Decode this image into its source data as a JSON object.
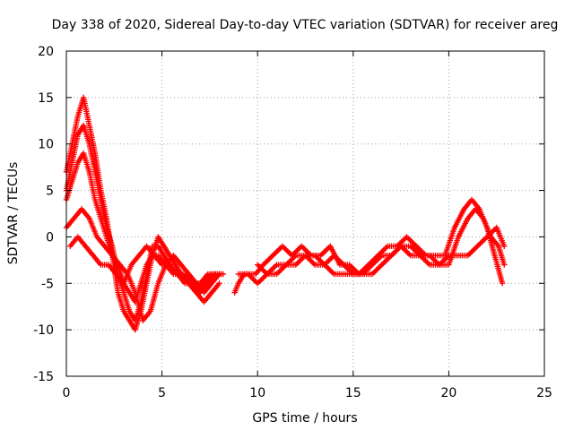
{
  "chart_data": {
    "type": "scatter",
    "title": "Day 338 of 2020, Sidereal Day-to-day VTEC variation (SDTVAR) for receiver areg",
    "xlabel": "GPS time / hours",
    "ylabel": "SDTVAR / TECUs",
    "xlim": [
      0,
      25
    ],
    "ylim": [
      -15,
      20
    ],
    "xticks": [
      0,
      5,
      10,
      15,
      20,
      25
    ],
    "yticks": [
      -15,
      -10,
      -5,
      0,
      5,
      10,
      15,
      20
    ],
    "grid": true,
    "marker": "plus",
    "color": "#ff0000",
    "series": [
      {
        "name": "trace-1",
        "x": [
          0.0,
          0.3,
          0.6,
          0.9,
          1.2,
          1.5,
          1.8,
          2.1,
          2.4,
          2.7,
          3.0,
          3.3,
          3.6,
          3.9,
          4.2,
          4.5,
          4.8,
          5.1,
          5.4,
          5.7,
          6.0,
          6.4,
          6.8,
          7.2,
          7.6,
          8.0
        ],
        "y": [
          7,
          10,
          13,
          15,
          12,
          9,
          5,
          2,
          -2,
          -6,
          -8,
          -9,
          -10,
          -8,
          -5,
          -2,
          0,
          -1,
          -2,
          -3,
          -4,
          -5,
          -6,
          -7,
          -6,
          -5
        ]
      },
      {
        "name": "trace-2",
        "x": [
          0.0,
          0.3,
          0.6,
          0.9,
          1.2,
          1.5,
          1.8,
          2.1,
          2.4,
          2.7,
          3.0,
          3.3,
          3.6,
          3.9,
          4.2,
          4.5,
          4.8,
          5.1,
          5.4,
          5.8,
          6.2,
          6.6,
          7.0,
          7.4,
          7.8,
          8.2
        ],
        "y": [
          5,
          8,
          11,
          12,
          10,
          7,
          4,
          1,
          -1,
          -4,
          -6,
          -8,
          -9,
          -7,
          -4,
          -1,
          -1,
          -2,
          -3,
          -4,
          -5,
          -5,
          -6,
          -5,
          -4,
          -4
        ]
      },
      {
        "name": "trace-3",
        "x": [
          0.0,
          0.3,
          0.6,
          0.9,
          1.2,
          1.5,
          1.8,
          2.1,
          2.4,
          2.7,
          3.0,
          3.3,
          3.6,
          3.9,
          4.2,
          4.5,
          4.8,
          5.2,
          5.6,
          6.0,
          6.4,
          6.8,
          7.2,
          7.6,
          8.0
        ],
        "y": [
          4,
          6,
          8,
          9,
          7,
          4,
          2,
          0,
          -2,
          -3,
          -5,
          -6,
          -7,
          -5,
          -3,
          -2,
          -2,
          -3,
          -4,
          -4,
          -5,
          -6,
          -5,
          -4,
          -4
        ]
      },
      {
        "name": "trace-4",
        "x": [
          0.0,
          0.4,
          0.8,
          1.2,
          1.6,
          2.0,
          2.4,
          2.8,
          3.2,
          3.6,
          4.0,
          4.4,
          4.8,
          5.2,
          5.6,
          6.0,
          6.4,
          6.8,
          7.2,
          7.6,
          8.0
        ],
        "y": [
          1,
          2,
          3,
          2,
          0,
          -1,
          -2,
          -3,
          -4,
          -6,
          -9,
          -8,
          -5,
          -3,
          -2,
          -3,
          -4,
          -5,
          -6,
          -5,
          -4
        ]
      },
      {
        "name": "trace-5",
        "x": [
          0.2,
          0.6,
          1.0,
          1.4,
          1.8,
          2.2,
          2.6,
          3.0,
          3.4,
          3.8,
          4.2,
          4.6,
          5.0,
          5.4,
          5.8,
          6.2,
          6.6,
          7.0,
          7.4,
          7.8
        ],
        "y": [
          -1,
          0,
          -1,
          -2,
          -3,
          -3,
          -4,
          -5,
          -3,
          -2,
          -1,
          -2,
          -3,
          -3,
          -4,
          -4,
          -5,
          -5,
          -4,
          -4
        ]
      },
      {
        "name": "trace-6",
        "x": [
          8.8,
          9.0,
          9.3,
          9.6,
          9.9,
          10.3,
          10.8,
          11.3,
          11.8,
          12.3,
          12.8,
          13.3,
          13.8,
          14.3,
          14.8,
          15.3,
          15.8,
          16.3,
          16.8,
          17.3,
          17.8,
          18.3,
          18.8,
          19.3,
          19.8,
          20.3,
          20.8,
          21.2,
          21.6,
          22.0,
          22.4,
          22.8
        ],
        "y": [
          -6,
          -5,
          -4,
          -4,
          -4,
          -3,
          -2,
          -1,
          -2,
          -1,
          -2,
          -2,
          -1,
          -3,
          -3,
          -4,
          -3,
          -2,
          -1,
          -1,
          0,
          -1,
          -2,
          -2,
          -2,
          1,
          3,
          4,
          3,
          1,
          -2,
          -5
        ]
      },
      {
        "name": "trace-7",
        "x": [
          9.0,
          9.5,
          10.0,
          10.5,
          11.0,
          11.5,
          12.0,
          12.5,
          13.0,
          13.5,
          14.0,
          14.5,
          15.0,
          15.5,
          16.0,
          16.5,
          17.0,
          17.5,
          18.0,
          18.5,
          19.0,
          19.5,
          20.0,
          20.5,
          21.0,
          21.4,
          21.8,
          22.2,
          22.6,
          22.9
        ],
        "y": [
          -4,
          -4,
          -5,
          -4,
          -3,
          -3,
          -3,
          -2,
          -2,
          -3,
          -4,
          -4,
          -4,
          -4,
          -3,
          -2,
          -2,
          -1,
          -1,
          -2,
          -3,
          -3,
          -3,
          0,
          2,
          3,
          2,
          0,
          -1,
          -3
        ]
      },
      {
        "name": "trace-8",
        "x": [
          10.0,
          10.5,
          11.0,
          11.5,
          12.0,
          12.5,
          13.0,
          13.5,
          14.0,
          14.5,
          15.0,
          15.5,
          16.0,
          16.5,
          17.0,
          17.5,
          18.0,
          18.5,
          19.0,
          19.5,
          20.0,
          20.5,
          21.0,
          21.5,
          22.0,
          22.5,
          22.9
        ],
        "y": [
          -3,
          -4,
          -4,
          -3,
          -2,
          -2,
          -3,
          -3,
          -2,
          -3,
          -4,
          -4,
          -4,
          -3,
          -2,
          -1,
          -2,
          -2,
          -2,
          -3,
          -2,
          -2,
          -2,
          -1,
          0,
          1,
          -1
        ]
      }
    ]
  }
}
